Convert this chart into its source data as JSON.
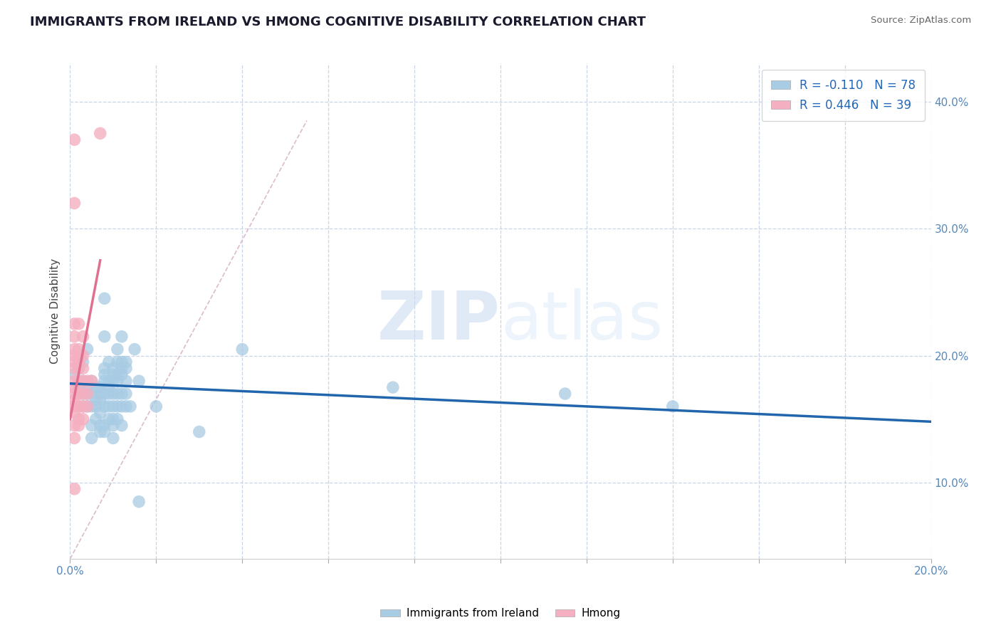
{
  "title": "IMMIGRANTS FROM IRELAND VS HMONG COGNITIVE DISABILITY CORRELATION CHART",
  "source": "Source: ZipAtlas.com",
  "ylabel": "Cognitive Disability",
  "xlim": [
    0.0,
    0.2
  ],
  "ylim": [
    0.04,
    0.43
  ],
  "xticks": [
    0.0,
    0.02,
    0.04,
    0.06,
    0.08,
    0.1,
    0.12,
    0.14,
    0.16,
    0.18,
    0.2
  ],
  "yticks": [
    0.1,
    0.2,
    0.3,
    0.4
  ],
  "legend_R1": "R = -0.110",
  "legend_N1": "N = 78",
  "legend_R2": "R = 0.446",
  "legend_N2": "N = 39",
  "blue_color": "#a8cce4",
  "pink_color": "#f4afc0",
  "blue_line_color": "#2166ac",
  "pink_line_color": "#e07090",
  "watermark_zip": "ZIP",
  "watermark_atlas": "atlas",
  "background_color": "#ffffff",
  "grid_color": "#c8d4e8",
  "title_color": "#1a1a2e",
  "source_color": "#666666",
  "axis_label_color": "#5588bb",
  "ireland_scatter": [
    [
      0.001,
      0.185
    ],
    [
      0.002,
      0.19
    ],
    [
      0.002,
      0.175
    ],
    [
      0.003,
      0.17
    ],
    [
      0.003,
      0.16
    ],
    [
      0.003,
      0.195
    ],
    [
      0.003,
      0.18
    ],
    [
      0.004,
      0.17
    ],
    [
      0.004,
      0.175
    ],
    [
      0.004,
      0.16
    ],
    [
      0.004,
      0.205
    ],
    [
      0.005,
      0.18
    ],
    [
      0.005,
      0.17
    ],
    [
      0.005,
      0.16
    ],
    [
      0.005,
      0.145
    ],
    [
      0.005,
      0.135
    ],
    [
      0.006,
      0.175
    ],
    [
      0.006,
      0.165
    ],
    [
      0.006,
      0.16
    ],
    [
      0.006,
      0.15
    ],
    [
      0.007,
      0.175
    ],
    [
      0.007,
      0.17
    ],
    [
      0.007,
      0.165
    ],
    [
      0.007,
      0.155
    ],
    [
      0.007,
      0.145
    ],
    [
      0.007,
      0.14
    ],
    [
      0.008,
      0.245
    ],
    [
      0.008,
      0.215
    ],
    [
      0.008,
      0.19
    ],
    [
      0.008,
      0.185
    ],
    [
      0.008,
      0.18
    ],
    [
      0.008,
      0.17
    ],
    [
      0.008,
      0.16
    ],
    [
      0.008,
      0.145
    ],
    [
      0.008,
      0.14
    ],
    [
      0.009,
      0.195
    ],
    [
      0.009,
      0.18
    ],
    [
      0.009,
      0.175
    ],
    [
      0.009,
      0.17
    ],
    [
      0.009,
      0.16
    ],
    [
      0.009,
      0.15
    ],
    [
      0.01,
      0.19
    ],
    [
      0.01,
      0.185
    ],
    [
      0.01,
      0.18
    ],
    [
      0.01,
      0.17
    ],
    [
      0.01,
      0.16
    ],
    [
      0.01,
      0.15
    ],
    [
      0.01,
      0.145
    ],
    [
      0.01,
      0.135
    ],
    [
      0.011,
      0.205
    ],
    [
      0.011,
      0.195
    ],
    [
      0.011,
      0.185
    ],
    [
      0.011,
      0.18
    ],
    [
      0.011,
      0.17
    ],
    [
      0.011,
      0.16
    ],
    [
      0.011,
      0.15
    ],
    [
      0.012,
      0.215
    ],
    [
      0.012,
      0.195
    ],
    [
      0.012,
      0.19
    ],
    [
      0.012,
      0.185
    ],
    [
      0.012,
      0.17
    ],
    [
      0.012,
      0.16
    ],
    [
      0.012,
      0.145
    ],
    [
      0.013,
      0.195
    ],
    [
      0.013,
      0.19
    ],
    [
      0.013,
      0.18
    ],
    [
      0.013,
      0.17
    ],
    [
      0.013,
      0.16
    ],
    [
      0.014,
      0.16
    ],
    [
      0.015,
      0.205
    ],
    [
      0.016,
      0.18
    ],
    [
      0.016,
      0.085
    ],
    [
      0.02,
      0.16
    ],
    [
      0.03,
      0.14
    ],
    [
      0.04,
      0.205
    ],
    [
      0.075,
      0.175
    ],
    [
      0.115,
      0.17
    ],
    [
      0.14,
      0.16
    ]
  ],
  "hmong_scatter": [
    [
      0.001,
      0.37
    ],
    [
      0.001,
      0.32
    ],
    [
      0.001,
      0.225
    ],
    [
      0.001,
      0.215
    ],
    [
      0.001,
      0.205
    ],
    [
      0.001,
      0.2
    ],
    [
      0.001,
      0.195
    ],
    [
      0.001,
      0.19
    ],
    [
      0.001,
      0.18
    ],
    [
      0.001,
      0.175
    ],
    [
      0.001,
      0.17
    ],
    [
      0.001,
      0.165
    ],
    [
      0.001,
      0.16
    ],
    [
      0.001,
      0.155
    ],
    [
      0.001,
      0.145
    ],
    [
      0.001,
      0.135
    ],
    [
      0.001,
      0.095
    ],
    [
      0.002,
      0.225
    ],
    [
      0.002,
      0.205
    ],
    [
      0.002,
      0.2
    ],
    [
      0.002,
      0.195
    ],
    [
      0.002,
      0.19
    ],
    [
      0.002,
      0.18
    ],
    [
      0.002,
      0.17
    ],
    [
      0.002,
      0.16
    ],
    [
      0.002,
      0.15
    ],
    [
      0.002,
      0.145
    ],
    [
      0.003,
      0.215
    ],
    [
      0.003,
      0.2
    ],
    [
      0.003,
      0.19
    ],
    [
      0.003,
      0.18
    ],
    [
      0.003,
      0.17
    ],
    [
      0.003,
      0.16
    ],
    [
      0.003,
      0.15
    ],
    [
      0.004,
      0.18
    ],
    [
      0.004,
      0.17
    ],
    [
      0.004,
      0.16
    ],
    [
      0.005,
      0.18
    ],
    [
      0.007,
      0.375
    ]
  ],
  "ireland_trend_x": [
    0.0,
    0.2
  ],
  "ireland_trend_y": [
    0.178,
    0.148
  ],
  "hmong_trend_x": [
    0.0,
    0.007
  ],
  "hmong_trend_y": [
    0.15,
    0.275
  ],
  "diag_line_x": [
    0.0,
    0.055
  ],
  "diag_line_y": [
    0.04,
    0.385
  ]
}
